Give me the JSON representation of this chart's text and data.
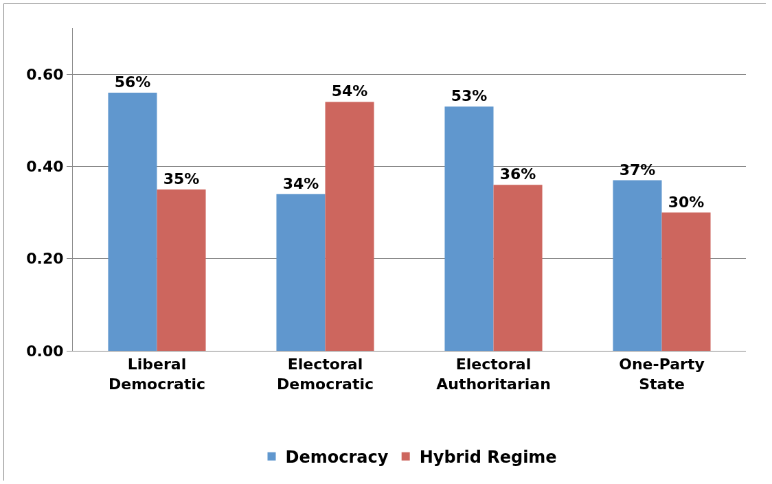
{
  "chart_data": {
    "type": "bar",
    "categories": [
      "Liberal Democratic",
      "Electoral Democratic",
      "Electoral Authoritarian",
      "One-Party State"
    ],
    "series": [
      {
        "name": "Democracy",
        "color": "#6097ce",
        "values": [
          0.56,
          0.34,
          0.53,
          0.37
        ],
        "value_labels": [
          "56%",
          "34%",
          "53%",
          "37%"
        ]
      },
      {
        "name": "Hybrid Regime",
        "color": "#cd665e",
        "values": [
          0.35,
          0.54,
          0.36,
          0.3
        ],
        "value_labels": [
          "35%",
          "54%",
          "36%",
          "30%"
        ]
      }
    ],
    "ylim": [
      0,
      0.7
    ],
    "yticks": [
      {
        "value": 0,
        "label": "0.00"
      },
      {
        "value": 0.2,
        "label": "0.20"
      },
      {
        "value": 0.4,
        "label": "0.40"
      },
      {
        "value": 0.6,
        "label": "0.60"
      }
    ],
    "grid": "y",
    "legend": "bottom"
  }
}
